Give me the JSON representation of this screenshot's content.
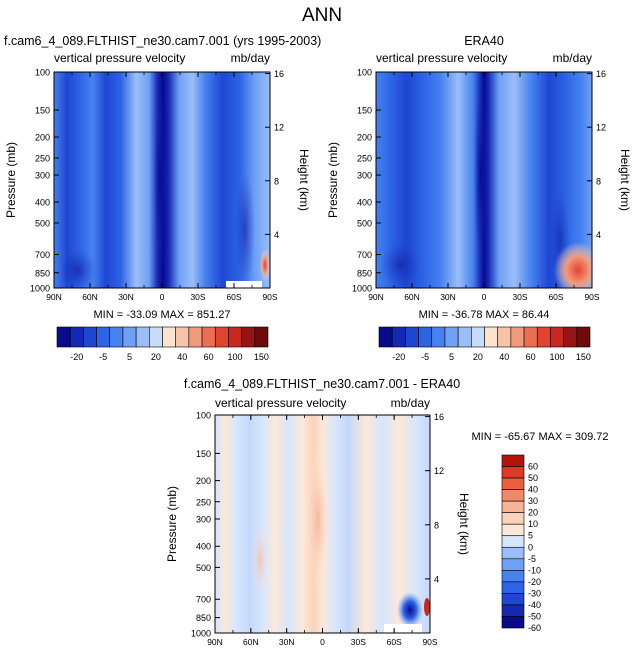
{
  "page_title": "ANN",
  "colors": {
    "main_levels": [
      "#0a0a8c",
      "#1428b4",
      "#1e46d2",
      "#2d64e6",
      "#4682f0",
      "#6ea0f5",
      "#9bbef8",
      "#c8dcfc",
      "#fbe3d2",
      "#f7c3a8",
      "#f29a7c",
      "#ec6f52",
      "#e2452d",
      "#c8281e",
      "#961414",
      "#6e0a0a"
    ],
    "diff_levels": [
      "#0a0a8c",
      "#1428b4",
      "#1e46d2",
      "#2d64e6",
      "#4682f0",
      "#6ea0f5",
      "#9bbef8",
      "#d6e6fd",
      "#fde8d8",
      "#fbd2bb",
      "#f7b394",
      "#f28a68",
      "#ea5f3e",
      "#dc3a22",
      "#b4140a"
    ]
  },
  "panels": {
    "top_left": {
      "title": "f.cam6_4_089.FLTHIST_ne30.cam7.001 (yrs 1995-2003)",
      "field_label": "vertical pressure velocity",
      "units_label": "mb/day",
      "left_axis_label": "Pressure (mb)",
      "right_axis_label": "Height (km)",
      "stats": "MIN = -33.09   MAX = 851.27"
    },
    "top_right": {
      "title": "ERA40",
      "field_label": "vertical pressure velocity",
      "units_label": "mb/day",
      "left_axis_label": "Pressure (mb)",
      "right_axis_label": "Height (km)",
      "stats": "MIN = -36.78   MAX =  86.44"
    },
    "bottom": {
      "title": "f.cam6_4_089.FLTHIST_ne30.cam7.001 - ERA40",
      "field_label": "vertical pressure velocity",
      "units_label": "mb/day",
      "left_axis_label": "Pressure (mb)",
      "right_axis_label": "Height (km)",
      "stats": "MIN = -65.67   MAX = 309.72"
    }
  },
  "axes": {
    "x_ticks": [
      "90N",
      "60N",
      "30N",
      "0",
      "30S",
      "60S",
      "90S"
    ],
    "pressure_ticks": [
      "100",
      "150",
      "200",
      "250",
      "300",
      "400",
      "500",
      "700",
      "850",
      "1000"
    ],
    "height_ticks": [
      "16",
      "12",
      "8",
      "4"
    ]
  },
  "chart_data": [
    {
      "type": "heatmap",
      "title": "f.cam6_4_089.FLTHIST_ne30.cam7.001 (yrs 1995-2003)",
      "subtitle": "vertical pressure velocity",
      "units": "mb/day",
      "xlabel": "",
      "ylabel": "Pressure (mb)",
      "y2label": "Height (km)",
      "x_ticks": [
        "90N",
        "60N",
        "30N",
        "0",
        "30S",
        "60S",
        "90S"
      ],
      "y_ticks": [
        100,
        150,
        200,
        250,
        300,
        400,
        500,
        700,
        850,
        1000
      ],
      "y2_ticks": [
        16,
        12,
        8,
        4
      ],
      "y_scale": "log",
      "ylim": [
        1000,
        100
      ],
      "colorbar_levels": [
        -20,
        -5,
        5,
        20,
        40,
        60,
        100,
        150
      ],
      "min": -33.09,
      "max": 851.27
    },
    {
      "type": "heatmap",
      "title": "ERA40",
      "subtitle": "vertical pressure velocity",
      "units": "mb/day",
      "xlabel": "",
      "ylabel": "Pressure (mb)",
      "y2label": "Height (km)",
      "x_ticks": [
        "90N",
        "60N",
        "30N",
        "0",
        "30S",
        "60S",
        "90S"
      ],
      "y_ticks": [
        100,
        150,
        200,
        250,
        300,
        400,
        500,
        700,
        850,
        1000
      ],
      "y2_ticks": [
        16,
        12,
        8,
        4
      ],
      "y_scale": "log",
      "ylim": [
        1000,
        100
      ],
      "colorbar_levels": [
        -20,
        -5,
        5,
        20,
        40,
        60,
        100,
        150
      ],
      "min": -36.78,
      "max": 86.44
    },
    {
      "type": "heatmap",
      "title": "f.cam6_4_089.FLTHIST_ne30.cam7.001 - ERA40",
      "subtitle": "vertical pressure velocity",
      "units": "mb/day",
      "xlabel": "",
      "ylabel": "Pressure (mb)",
      "y2label": "Height (km)",
      "x_ticks": [
        "90N",
        "60N",
        "30N",
        "0",
        "30S",
        "60S",
        "90S"
      ],
      "y_ticks": [
        100,
        150,
        200,
        250,
        300,
        400,
        500,
        700,
        850,
        1000
      ],
      "y2_ticks": [
        16,
        12,
        8,
        4
      ],
      "y_scale": "log",
      "ylim": [
        1000,
        100
      ],
      "colorbar_levels": [
        60,
        50,
        40,
        30,
        20,
        10,
        5,
        0,
        -5,
        -10,
        -20,
        -30,
        -40,
        -50,
        -60
      ],
      "min": -65.67,
      "max": 309.72
    }
  ]
}
